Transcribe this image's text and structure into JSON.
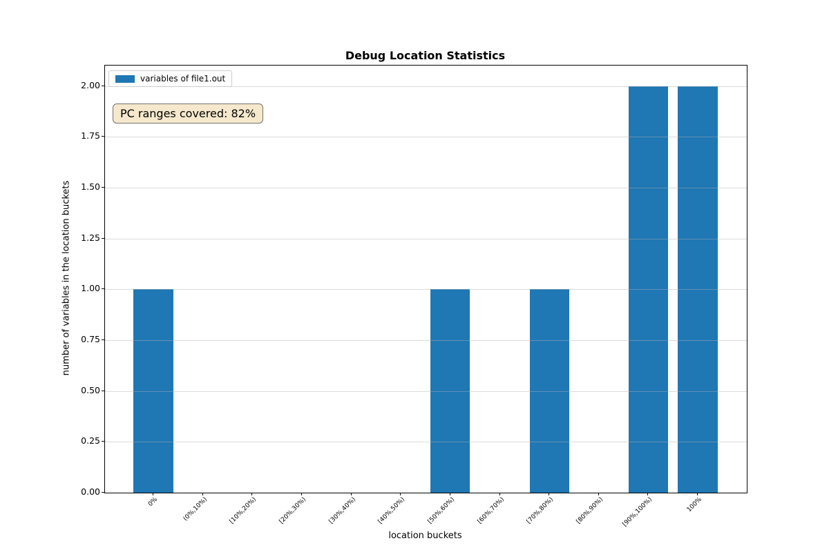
{
  "chart_data": {
    "type": "bar",
    "title": "Debug Location Statistics",
    "xlabel": "location buckets",
    "ylabel": "number of variables in the location buckets",
    "categories": [
      "0%",
      "(0%,10%)",
      "[10%,20%)",
      "[20%,30%)",
      "[30%,40%)",
      "[40%,50%)",
      "[50%,60%)",
      "[60%,70%)",
      "[70%,80%)",
      "[80%,90%)",
      "[90%,100%)",
      "100%"
    ],
    "series": [
      {
        "name": "variables of file1.out",
        "values": [
          1,
          0,
          0,
          0,
          0,
          0,
          1,
          0,
          1,
          0,
          2,
          2
        ]
      }
    ],
    "ylim": [
      0,
      2.1
    ],
    "yticks": [
      "0.00",
      "0.25",
      "0.50",
      "0.75",
      "1.00",
      "1.25",
      "1.50",
      "1.75",
      "2.00"
    ],
    "grid": "horizontal",
    "legend_position": "upper left",
    "bar_color": "#1f77b4",
    "annotation": {
      "text": "PC ranges covered: 82%",
      "bg": "#f5e8cc",
      "border": "#74706a"
    }
  }
}
